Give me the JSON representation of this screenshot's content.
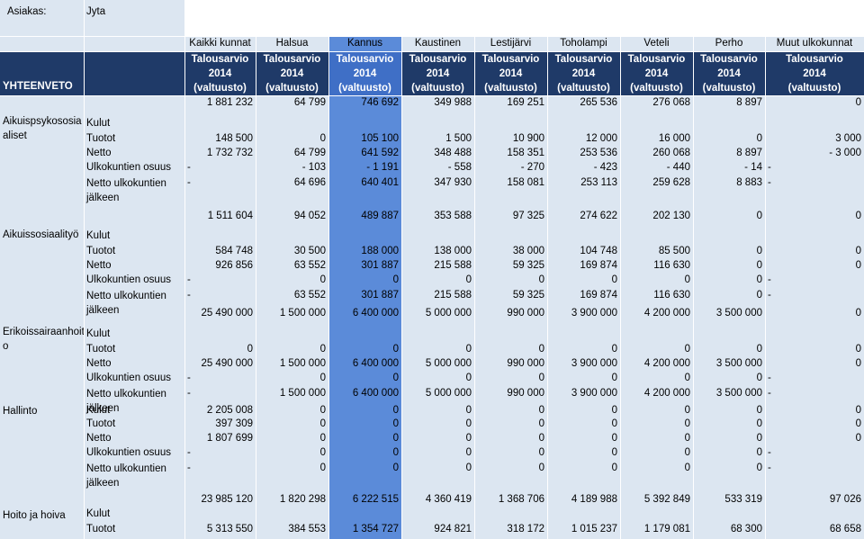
{
  "client": {
    "label": "Asiakas:",
    "name": "Jyta"
  },
  "municipalities": [
    "Kaikki kunnat",
    "Halsua",
    "Kannus",
    "Kaustinen",
    "Lestijärvi",
    "Toholampi",
    "Veteli",
    "Perho",
    "Muut ulkokunnat"
  ],
  "summary_label": "YHTEENVETO",
  "header_line1": "Talousarvio",
  "header_line2": "2014",
  "header_line3": "(valtuusto)",
  "sections": [
    {
      "name": "Aikuispsykososiaaliset",
      "rows": [
        {
          "label": "Kulut",
          "values": [
            "1 881 232",
            "64 799",
            "746 692",
            "349 988",
            "169 251",
            "265 536",
            "276 068",
            "8 897",
            "0"
          ]
        },
        {
          "label": "Tuotot",
          "values": [
            "148 500",
            "0",
            "105 100",
            "1 500",
            "10 900",
            "12 000",
            "16 000",
            "0",
            "3 000"
          ]
        },
        {
          "label": "Netto",
          "values": [
            "1 732 732",
            "64 799",
            "641 592",
            "348 488",
            "158 351",
            "253 536",
            "260 068",
            "8 897",
            "- 3 000"
          ]
        },
        {
          "label": "Ulkokuntien osuus",
          "first": "-",
          "values": [
            "- 103",
            "- 1 191",
            "- 558",
            "- 270",
            "- 423",
            "- 440",
            "- 14"
          ],
          "last": "-"
        },
        {
          "label": "Netto ulkokuntien jälkeen",
          "first": "-",
          "values": [
            "64 696",
            "640 401",
            "347 930",
            "158 081",
            "253 113",
            "259 628",
            "8 883"
          ],
          "last": "-"
        }
      ]
    },
    {
      "name": "Aikuissosiaalityö",
      "rows": [
        {
          "label": "Kulut",
          "values": [
            "1 511 604",
            "94 052",
            "489 887",
            "353 588",
            "97 325",
            "274 622",
            "202 130",
            "0",
            "0"
          ]
        },
        {
          "label": "Tuotot",
          "values": [
            "584 748",
            "30 500",
            "188 000",
            "138 000",
            "38 000",
            "104 748",
            "85 500",
            "0",
            "0"
          ]
        },
        {
          "label": "Netto",
          "values": [
            "926 856",
            "63 552",
            "301 887",
            "215 588",
            "59 325",
            "169 874",
            "116 630",
            "0",
            "0"
          ]
        },
        {
          "label": "Ulkokuntien osuus",
          "first": "-",
          "values": [
            "0",
            "0",
            "0",
            "0",
            "0",
            "0",
            "0"
          ],
          "last": "-"
        },
        {
          "label": "Netto ulkokuntien jälkeen",
          "first": "-",
          "values": [
            "63 552",
            "301 887",
            "215 588",
            "59 325",
            "169 874",
            "116 630",
            "0"
          ],
          "last": "-"
        }
      ]
    },
    {
      "name": "Erikoissairaanhoito",
      "rows": [
        {
          "label": "Kulut",
          "values": [
            "25 490 000",
            "1 500 000",
            "6 400 000",
            "5 000 000",
            "990 000",
            "3 900 000",
            "4 200 000",
            "3 500 000",
            "0"
          ]
        },
        {
          "label": "Tuotot",
          "values": [
            "0",
            "0",
            "0",
            "0",
            "0",
            "0",
            "0",
            "0",
            "0"
          ]
        },
        {
          "label": "Netto",
          "values": [
            "25 490 000",
            "1 500 000",
            "6 400 000",
            "5 000 000",
            "990 000",
            "3 900 000",
            "4 200 000",
            "3 500 000",
            "0"
          ]
        },
        {
          "label": "Ulkokuntien osuus",
          "first": "-",
          "values": [
            "0",
            "0",
            "0",
            "0",
            "0",
            "0",
            "0"
          ],
          "last": "-"
        },
        {
          "label": "Netto ulkokuntien jälkeen",
          "first": "-",
          "values": [
            "1 500 000",
            "6 400 000",
            "5 000 000",
            "990 000",
            "3 900 000",
            "4 200 000",
            "3 500 000"
          ],
          "last": "-"
        }
      ]
    },
    {
      "name": "Hallinto",
      "rows": [
        {
          "label": "Kulut",
          "values": [
            "2 205 008",
            "0",
            "0",
            "0",
            "0",
            "0",
            "0",
            "0",
            "0"
          ]
        },
        {
          "label": "Tuotot",
          "values": [
            "397 309",
            "0",
            "0",
            "0",
            "0",
            "0",
            "0",
            "0",
            "0"
          ]
        },
        {
          "label": "Netto",
          "values": [
            "1 807 699",
            "0",
            "0",
            "0",
            "0",
            "0",
            "0",
            "0",
            "0"
          ]
        },
        {
          "label": "Ulkokuntien osuus",
          "first": "-",
          "values": [
            "0",
            "0",
            "0",
            "0",
            "0",
            "0",
            "0"
          ],
          "last": "-"
        },
        {
          "label": "Netto ulkokuntien jälkeen",
          "first": "-",
          "values": [
            "0",
            "0",
            "0",
            "0",
            "0",
            "0",
            "0"
          ],
          "last": "-"
        }
      ]
    },
    {
      "name": "Hoito ja hoiva",
      "rows": [
        {
          "label": "Kulut",
          "values": [
            "23 985 120",
            "1 820 298",
            "6 222 515",
            "4 360 419",
            "1 368 706",
            "4 189 988",
            "5 392 849",
            "533 319",
            "97 026"
          ]
        },
        {
          "label": "Tuotot",
          "values": [
            "5 313 550",
            "384 553",
            "1 354 727",
            "924 821",
            "318 172",
            "1 015 237",
            "1 179 081",
            "68 300",
            "68 658"
          ]
        }
      ]
    }
  ]
}
